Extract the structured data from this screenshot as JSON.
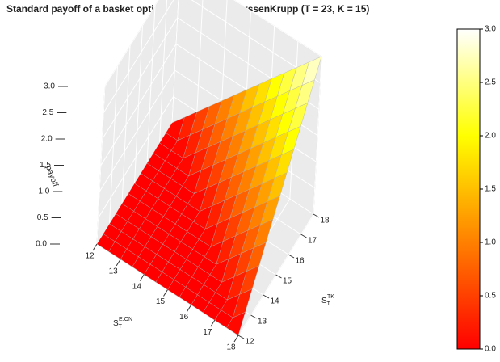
{
  "chart_data": {
    "type": "surface",
    "title": "Standard payoff of a basket option for E.ON and ThyssenKrupp (T = 23, K = 15)",
    "xlabel": {
      "main": "S",
      "sub": "T",
      "sup": "E.ON"
    },
    "ylabel": {
      "main": "S",
      "sub": "T",
      "sup": "TK"
    },
    "zlabel": "payoff",
    "x": [
      12,
      12.5,
      13,
      13.5,
      14,
      14.5,
      15,
      15.5,
      16,
      16.5,
      17,
      17.5,
      18
    ],
    "y": [
      12,
      12.5,
      13,
      13.5,
      14,
      14.5,
      15,
      15.5,
      16,
      16.5,
      17,
      17.5,
      18
    ],
    "z": [
      [
        0,
        0,
        0,
        0,
        0,
        0,
        0,
        0,
        0,
        0,
        0,
        0,
        0
      ],
      [
        0,
        0,
        0,
        0,
        0,
        0,
        0,
        0,
        0,
        0,
        0,
        0,
        0.25
      ],
      [
        0,
        0,
        0,
        0,
        0,
        0,
        0,
        0,
        0,
        0,
        0,
        0.25,
        0.5
      ],
      [
        0,
        0,
        0,
        0,
        0,
        0,
        0,
        0,
        0,
        0,
        0.25,
        0.5,
        0.75
      ],
      [
        0,
        0,
        0,
        0,
        0,
        0,
        0,
        0,
        0,
        0.25,
        0.5,
        0.75,
        1
      ],
      [
        0,
        0,
        0,
        0,
        0,
        0,
        0,
        0,
        0.25,
        0.5,
        0.75,
        1,
        1.25
      ],
      [
        0,
        0,
        0,
        0,
        0,
        0,
        0,
        0.25,
        0.5,
        0.75,
        1,
        1.25,
        1.5
      ],
      [
        0,
        0,
        0,
        0,
        0,
        0,
        0.25,
        0.5,
        0.75,
        1,
        1.25,
        1.5,
        1.75
      ],
      [
        0,
        0,
        0,
        0,
        0,
        0.25,
        0.5,
        0.75,
        1,
        1.25,
        1.5,
        1.75,
        2
      ],
      [
        0,
        0,
        0,
        0,
        0.25,
        0.5,
        0.75,
        1,
        1.25,
        1.5,
        1.75,
        2,
        2.25
      ],
      [
        0,
        0,
        0,
        0.25,
        0.5,
        0.75,
        1,
        1.25,
        1.5,
        1.75,
        2,
        2.25,
        2.5
      ],
      [
        0,
        0,
        0.25,
        0.5,
        0.75,
        1,
        1.25,
        1.5,
        1.75,
        2,
        2.25,
        2.5,
        2.75
      ],
      [
        0,
        0.25,
        0.5,
        0.75,
        1,
        1.25,
        1.5,
        1.75,
        2,
        2.25,
        2.5,
        2.75,
        3
      ]
    ],
    "xlim": [
      12,
      18
    ],
    "ylim": [
      12,
      18
    ],
    "zlim": [
      0,
      3
    ],
    "xticks": [
      12,
      13,
      14,
      15,
      16,
      17,
      18
    ],
    "yticks": [
      12,
      13,
      14,
      15,
      16,
      17,
      18
    ],
    "zticks": [
      {
        "value": 0,
        "label": "0.0"
      },
      0.5,
      {
        "value": 1,
        "label": "1.0"
      },
      1.5,
      {
        "value": 2,
        "label": "2.0"
      },
      2.5,
      {
        "value": 3,
        "label": "3.0"
      }
    ],
    "colorscale": [
      "#ff0000",
      "#ff8000",
      "#ffff00",
      "#ffffff"
    ],
    "colorbar": true,
    "grid": true
  }
}
